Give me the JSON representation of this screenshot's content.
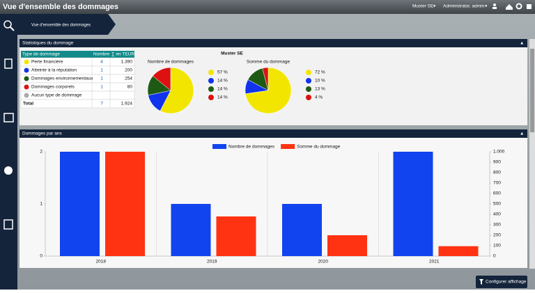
{
  "header": {
    "title": "Vue d'ensemble des dommages",
    "company": "Muster SE",
    "user": "Administrator, admin"
  },
  "breadcrumb": "Vue d'ensemble des dommages",
  "panels": [
    "Statistiques du dommage",
    "Dommages par ans"
  ],
  "stats_title": "Muster SE",
  "table": {
    "columns": [
      "Type de dommage",
      "Nombre",
      "∑ en TEUR"
    ],
    "rows": [
      [
        "Perte financière",
        "4",
        "1.390"
      ],
      [
        "Atteinte à la réputation",
        "1",
        "200"
      ],
      [
        "Dommages environnementaux",
        "1",
        "254"
      ],
      [
        "Dommages corporels",
        "1",
        "80"
      ],
      [
        "Aucun type de dommage"
      ]
    ],
    "colors": [
      "#f2e600",
      "#1133ee",
      "#1f5a14",
      "#dd1111",
      "#aaaaaa"
    ],
    "total": [
      "Total",
      "7",
      "1.924"
    ]
  },
  "button": "Configurer affichage",
  "chart_data": [
    {
      "type": "pie",
      "title": "Nombre de dommages",
      "values": [
        57,
        14,
        14,
        14
      ],
      "value_labels": [
        "57 %",
        "14 %",
        "14 %",
        "14 %"
      ],
      "colors": [
        "#f2e600",
        "#1133ee",
        "#1f5a14",
        "#dd1111"
      ]
    },
    {
      "type": "pie",
      "title": "Somme du dommage",
      "values": [
        72,
        10,
        13,
        4
      ],
      "value_labels": [
        "72 %",
        "10 %",
        "13 %",
        "4 %"
      ],
      "colors": [
        "#f2e600",
        "#1133ee",
        "#1f5a14",
        "#dd1111"
      ]
    },
    {
      "type": "bar",
      "categories": [
        "2018",
        "2019",
        "2020",
        "2021"
      ],
      "series": [
        {
          "name": "Nombre de dommages",
          "color": "#1144ee",
          "values": [
            2,
            1,
            1,
            2
          ]
        },
        {
          "name": "Somme du dommage",
          "color": "#ff3311",
          "values": [
            1000,
            380,
            200,
            95
          ],
          "axis": "y2"
        }
      ],
      "ylim": [
        0,
        2
      ],
      "yticks": [
        0,
        1,
        2
      ],
      "y2lim": [
        0,
        1000
      ],
      "y2ticks": [
        0,
        100,
        200,
        300,
        400,
        500,
        600,
        700,
        800,
        900,
        {
          "value": 1000,
          "label": "1.000"
        }
      ],
      "grid": true
    }
  ]
}
